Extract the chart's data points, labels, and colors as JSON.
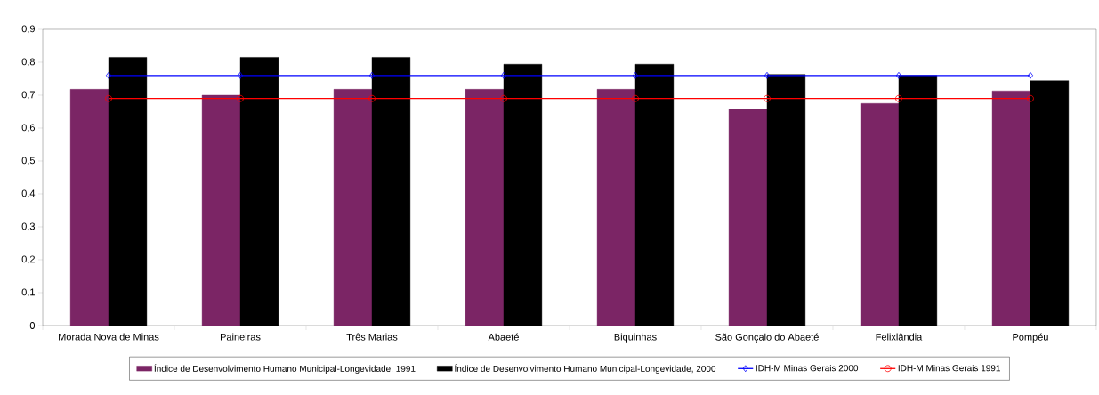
{
  "chart_data": {
    "type": "bar",
    "categories": [
      "Morada Nova de Minas",
      "Paineiras",
      "Três Marias",
      "Abaeté",
      "Biquinhas",
      "São Gonçalo do Abaeté",
      "Felixlândia",
      "Pompéu"
    ],
    "series": [
      {
        "name": "Índice de Desenvolvimento Humano Municipal-Longevidade, 1991",
        "color": "#7b2565",
        "values": [
          0.718,
          0.7,
          0.718,
          0.718,
          0.718,
          0.657,
          0.675,
          0.713
        ]
      },
      {
        "name": "Índice de Desenvolvimento Humano Municipal-Longevidade, 2000",
        "color": "#000000",
        "values": [
          0.815,
          0.815,
          0.815,
          0.794,
          0.794,
          0.763,
          0.76,
          0.744
        ]
      },
      {
        "name": "IDH-M Minas Gerais 2000",
        "type": "line",
        "marker": "diamond",
        "color": "#0000ff",
        "values": [
          0.76,
          0.76,
          0.76,
          0.76,
          0.76,
          0.76,
          0.76,
          0.76
        ]
      },
      {
        "name": "IDH-M Minas Gerais 1991",
        "type": "line",
        "marker": "circle",
        "color": "#ff0000",
        "values": [
          0.69,
          0.69,
          0.69,
          0.69,
          0.69,
          0.69,
          0.69,
          0.69
        ]
      }
    ],
    "ylim": [
      0,
      0.9
    ],
    "yticks": [
      0,
      {
        "value": 0.1,
        "label": "0,1"
      },
      {
        "value": 0.2,
        "label": "0,2"
      },
      {
        "value": 0.3,
        "label": "0,3"
      },
      {
        "value": 0.4,
        "label": "0,4"
      },
      {
        "value": 0.5,
        "label": "0,5"
      },
      {
        "value": 0.6,
        "label": "0,6"
      },
      {
        "value": 0.7,
        "label": "0,7"
      },
      {
        "value": 0.8,
        "label": "0,8"
      },
      {
        "value": 0.9,
        "label": "0,9"
      }
    ],
    "legend": "bottom"
  }
}
